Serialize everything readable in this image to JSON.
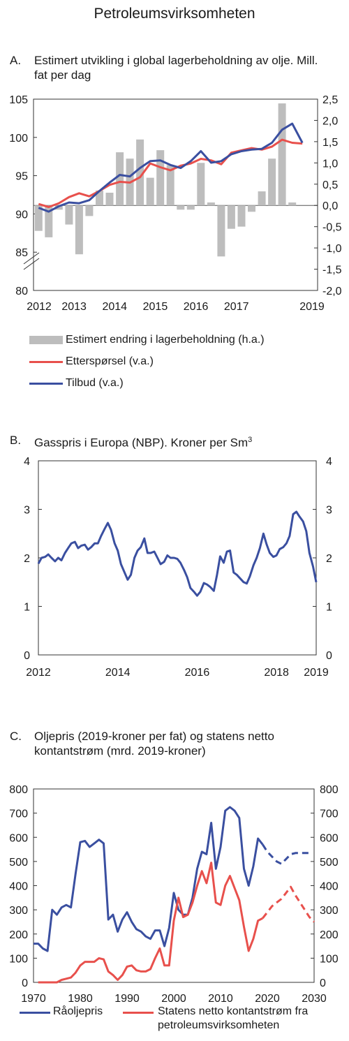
{
  "page_title": "Petroleumsvirksomheten",
  "colors": {
    "blue": "#3a4fa0",
    "red": "#e8504c",
    "bar": "#bdbdbd"
  },
  "chart_data": [
    {
      "id": "A",
      "panel_label": "A.",
      "title": "Estimert utvikling i global lagerbeholdning av olje. Mill. fat per dag",
      "type": "bar+line",
      "x_ticks": [
        "2012",
        "2013",
        "2014",
        "2015",
        "2016",
        "2017",
        "2019"
      ],
      "x_range": [
        2012,
        2019
      ],
      "left_axis": {
        "ticks": [
          "105",
          "100",
          "95",
          "90",
          "85",
          "80"
        ],
        "range": [
          80,
          105
        ],
        "break": true
      },
      "right_axis": {
        "ticks": [
          "2,5",
          "2,0",
          "1,5",
          "1,0",
          "0,5",
          "0,0",
          "-0,5",
          "-1,0",
          "-1,5",
          "-2,0"
        ],
        "range": [
          -2.0,
          2.5
        ]
      },
      "bars": {
        "name": "Estimert endring i lagerbeholdning (h.a.)",
        "x": [
          2012.0,
          2012.25,
          2012.5,
          2012.75,
          2013.0,
          2013.25,
          2013.5,
          2013.75,
          2014.0,
          2014.25,
          2014.5,
          2014.75,
          2015.0,
          2015.25,
          2015.5,
          2015.75,
          2016.0,
          2016.25,
          2016.5,
          2016.75,
          2017.0,
          2017.25,
          2017.5,
          2017.75,
          2018.0,
          2018.25,
          2018.5
        ],
        "values": [
          -0.6,
          -0.75,
          -0.1,
          -0.45,
          -1.15,
          -0.25,
          0.35,
          0.3,
          1.25,
          1.1,
          1.55,
          0.65,
          1.3,
          0.95,
          -0.1,
          -0.1,
          1.0,
          0.07,
          -1.2,
          -0.55,
          -0.5,
          -0.15,
          0.33,
          1.1,
          2.4,
          0.07,
          0.0
        ]
      },
      "series": [
        {
          "name": "Etterspørsel (v.a.)",
          "color": "#e8504c",
          "x": [
            2012.0,
            2012.25,
            2012.5,
            2012.75,
            2013.0,
            2013.25,
            2013.5,
            2013.75,
            2014.0,
            2014.25,
            2014.5,
            2014.75,
            2015.0,
            2015.25,
            2015.5,
            2015.75,
            2016.0,
            2016.25,
            2016.5,
            2016.75,
            2017.0,
            2017.25,
            2017.5,
            2017.75,
            2018.0,
            2018.25,
            2018.5
          ],
          "values": [
            91.3,
            90.9,
            91.4,
            92.2,
            92.7,
            92.3,
            93.0,
            93.8,
            94.2,
            94.1,
            94.8,
            96.6,
            96.1,
            95.7,
            96.3,
            96.6,
            97.2,
            97.0,
            96.5,
            98.0,
            98.3,
            98.6,
            98.4,
            98.8,
            99.7,
            99.3,
            99.2
          ]
        },
        {
          "name": "Tilbud (v.a.)",
          "color": "#3a4fa0",
          "x": [
            2012.0,
            2012.25,
            2012.5,
            2012.75,
            2013.0,
            2013.25,
            2013.5,
            2013.75,
            2014.0,
            2014.25,
            2014.5,
            2014.75,
            2015.0,
            2015.25,
            2015.5,
            2015.75,
            2016.0,
            2016.25,
            2016.5,
            2016.75,
            2017.0,
            2017.25,
            2017.5,
            2017.75,
            2018.0,
            2018.25,
            2018.5
          ],
          "values": [
            90.8,
            90.3,
            91.0,
            91.5,
            91.4,
            91.8,
            93.0,
            94.1,
            95.1,
            94.9,
            96.0,
            96.9,
            97.0,
            96.4,
            96.0,
            96.9,
            98.2,
            96.7,
            96.9,
            97.8,
            98.2,
            98.4,
            98.5,
            99.3,
            101.0,
            101.8,
            99.3
          ]
        }
      ]
    },
    {
      "id": "B",
      "panel_label": "B.",
      "title": "Gasspris i Europa (NBP). Kroner per Sm",
      "title_sup": "3",
      "type": "line",
      "x_ticks": [
        "2012",
        "2014",
        "2016",
        "2018",
        "2019"
      ],
      "x_range": [
        2012,
        2019
      ],
      "y_ticks": [
        "4",
        "3",
        "2",
        "1",
        "0"
      ],
      "ylim": [
        0,
        4
      ],
      "series": [
        {
          "name": "Gasspris",
          "color": "#3a4fa0",
          "x": [
            2012.0,
            2012.08,
            2012.17,
            2012.25,
            2012.33,
            2012.42,
            2012.5,
            2012.58,
            2012.67,
            2012.75,
            2012.83,
            2012.92,
            2013.0,
            2013.08,
            2013.17,
            2013.25,
            2013.33,
            2013.42,
            2013.5,
            2013.58,
            2013.67,
            2013.75,
            2013.83,
            2013.92,
            2014.0,
            2014.08,
            2014.17,
            2014.25,
            2014.33,
            2014.42,
            2014.5,
            2014.58,
            2014.67,
            2014.75,
            2014.83,
            2014.92,
            2015.0,
            2015.08,
            2015.17,
            2015.25,
            2015.33,
            2015.42,
            2015.5,
            2015.58,
            2015.67,
            2015.75,
            2015.83,
            2015.92,
            2016.0,
            2016.08,
            2016.17,
            2016.25,
            2016.33,
            2016.42,
            2016.5,
            2016.58,
            2016.67,
            2016.75,
            2016.83,
            2016.92,
            2017.0,
            2017.08,
            2017.17,
            2017.25,
            2017.33,
            2017.42,
            2017.5,
            2017.58,
            2017.67,
            2017.75,
            2017.83,
            2017.92,
            2018.0,
            2018.08,
            2018.17,
            2018.25,
            2018.33,
            2018.42,
            2018.5,
            2018.58,
            2018.67,
            2018.75,
            2018.83,
            2018.92,
            2019.0
          ],
          "values": [
            1.88,
            2.0,
            2.02,
            2.07,
            2.0,
            1.93,
            2.0,
            1.95,
            2.1,
            2.2,
            2.3,
            2.33,
            2.2,
            2.25,
            2.27,
            2.17,
            2.22,
            2.3,
            2.3,
            2.45,
            2.6,
            2.72,
            2.58,
            2.3,
            2.15,
            1.87,
            1.7,
            1.55,
            1.65,
            2.0,
            2.15,
            2.22,
            2.4,
            2.1,
            2.1,
            2.13,
            2.0,
            1.87,
            1.92,
            2.05,
            2.0,
            2.0,
            1.98,
            1.9,
            1.75,
            1.6,
            1.38,
            1.3,
            1.22,
            1.3,
            1.48,
            1.45,
            1.4,
            1.32,
            1.65,
            2.03,
            1.9,
            2.13,
            2.15,
            1.7,
            1.65,
            1.58,
            1.5,
            1.47,
            1.62,
            1.85,
            2.0,
            2.2,
            2.5,
            2.28,
            2.1,
            2.02,
            2.05,
            2.18,
            2.22,
            2.3,
            2.45,
            2.9,
            2.95,
            2.85,
            2.75,
            2.55,
            2.1,
            1.82,
            1.5
          ]
        }
      ]
    },
    {
      "id": "C",
      "panel_label": "C.",
      "title": "Oljepris (2019-kroner per fat) og statens netto kontantstrøm (mrd. 2019-kroner)",
      "type": "line",
      "x_ticks": [
        "1970",
        "1980",
        "1990",
        "2000",
        "2010",
        "2020",
        "2030"
      ],
      "x_range": [
        1970,
        2030
      ],
      "y_ticks": [
        "800",
        "700",
        "600",
        "500",
        "400",
        "300",
        "200",
        "100",
        "0"
      ],
      "ylim": [
        0,
        800
      ],
      "series": [
        {
          "name": "Råoljepris",
          "color": "#3a4fa0",
          "forecast_from": 2019,
          "x": [
            1970,
            1971,
            1972,
            1973,
            1974,
            1975,
            1976,
            1977,
            1978,
            1979,
            1980,
            1981,
            1982,
            1983,
            1984,
            1985,
            1986,
            1987,
            1988,
            1989,
            1990,
            1991,
            1992,
            1993,
            1994,
            1995,
            1996,
            1997,
            1998,
            1999,
            2000,
            2001,
            2002,
            2003,
            2004,
            2005,
            2006,
            2007,
            2008,
            2009,
            2010,
            2011,
            2012,
            2013,
            2014,
            2015,
            2016,
            2017,
            2018,
            2019,
            2020,
            2021,
            2022,
            2023,
            2024,
            2025,
            2026,
            2027,
            2028,
            2029
          ],
          "values": [
            160,
            160,
            140,
            130,
            300,
            280,
            310,
            320,
            310,
            450,
            580,
            585,
            560,
            575,
            590,
            575,
            260,
            280,
            210,
            260,
            290,
            250,
            220,
            210,
            190,
            180,
            215,
            215,
            150,
            225,
            370,
            300,
            280,
            280,
            350,
            470,
            540,
            530,
            660,
            470,
            560,
            710,
            725,
            710,
            680,
            470,
            400,
            480,
            595,
            570,
            540,
            520,
            500,
            490,
            510,
            530,
            535,
            535,
            535,
            535
          ]
        },
        {
          "name": "Statens netto kontantstrøm fra petroleumsvirksomheten",
          "color": "#e8504c",
          "forecast_from": 2019,
          "x": [
            1971,
            1972,
            1973,
            1974,
            1975,
            1976,
            1977,
            1978,
            1979,
            1980,
            1981,
            1982,
            1983,
            1984,
            1985,
            1986,
            1987,
            1988,
            1989,
            1990,
            1991,
            1992,
            1993,
            1994,
            1995,
            1996,
            1997,
            1998,
            1999,
            2000,
            2001,
            2002,
            2003,
            2004,
            2005,
            2006,
            2007,
            2008,
            2009,
            2010,
            2011,
            2012,
            2013,
            2014,
            2015,
            2016,
            2017,
            2018,
            2019,
            2020,
            2021,
            2022,
            2023,
            2024,
            2025,
            2026,
            2027,
            2028,
            2029,
            2030
          ],
          "values": [
            0,
            0,
            0,
            0,
            0,
            10,
            15,
            20,
            40,
            70,
            85,
            85,
            85,
            100,
            95,
            45,
            30,
            10,
            30,
            65,
            70,
            50,
            45,
            45,
            55,
            100,
            140,
            70,
            70,
            255,
            350,
            270,
            280,
            330,
            400,
            460,
            410,
            495,
            330,
            320,
            400,
            440,
            390,
            340,
            230,
            130,
            180,
            255,
            265,
            290,
            315,
            330,
            345,
            370,
            395,
            360,
            330,
            300,
            270,
            250
          ]
        }
      ]
    }
  ],
  "legend_a": [
    {
      "label": "Estimert endring i lagerbeholdning (h.a.)",
      "kind": "bar"
    },
    {
      "label": "Etterspørsel (v.a.)",
      "kind": "line",
      "color": "#e8504c"
    },
    {
      "label": "Tilbud (v.a.)",
      "kind": "line",
      "color": "#3a4fa0"
    }
  ],
  "legend_c": [
    {
      "label": "Råoljepris",
      "color": "#3a4fa0"
    },
    {
      "label": "Statens netto kontantstrøm fra",
      "label2": "petroleumsvirksomheten",
      "color": "#e8504c"
    }
  ]
}
